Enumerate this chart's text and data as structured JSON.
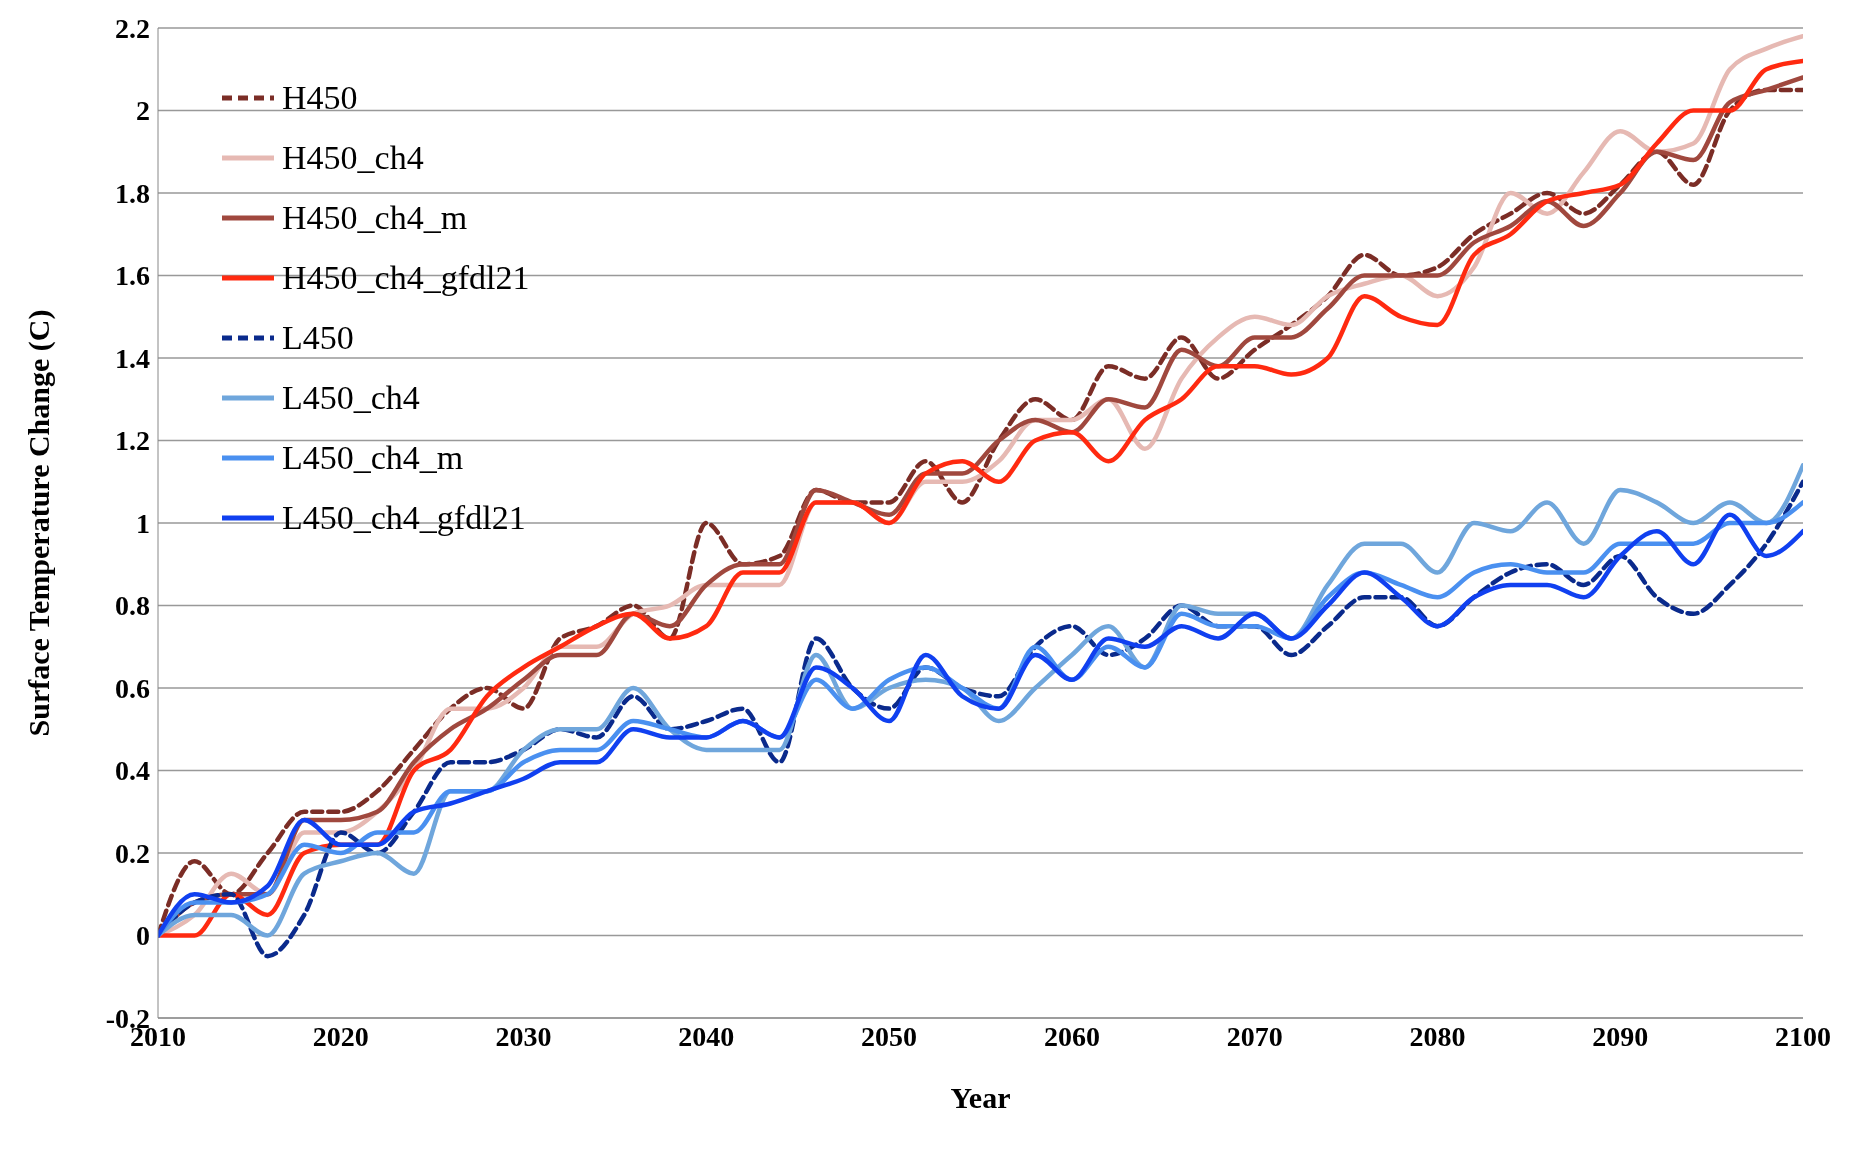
{
  "chart_data": {
    "type": "line",
    "xlabel": "Year",
    "ylabel": "Surface Temperature Change (C)",
    "x": [
      2010,
      2012,
      2014,
      2016,
      2018,
      2020,
      2022,
      2024,
      2026,
      2028,
      2030,
      2032,
      2034,
      2036,
      2038,
      2040,
      2042,
      2044,
      2046,
      2048,
      2050,
      2052,
      2054,
      2056,
      2058,
      2060,
      2062,
      2064,
      2066,
      2068,
      2070,
      2072,
      2074,
      2076,
      2078,
      2080,
      2082,
      2084,
      2086,
      2088,
      2090,
      2092,
      2094,
      2096,
      2098,
      2100
    ],
    "xlim": [
      2010,
      2100
    ],
    "xticks": [
      2010,
      2020,
      2030,
      2040,
      2050,
      2060,
      2070,
      2080,
      2090,
      2100
    ],
    "ylim": [
      -0.2,
      2.2
    ],
    "yticks": [
      -0.2,
      0,
      0.2,
      0.4,
      0.6,
      0.8,
      1,
      1.2,
      1.4,
      1.6,
      1.8,
      2,
      2.2
    ],
    "grid": "y",
    "legend": "top left",
    "marker": "none",
    "series": [
      {
        "name": "H450",
        "color": "#7b2d26",
        "line_style": "dashed",
        "values": [
          0,
          0.18,
          0.1,
          0.2,
          0.3,
          0.3,
          0.35,
          0.45,
          0.55,
          0.6,
          0.55,
          0.72,
          0.75,
          0.8,
          0.72,
          1.0,
          0.9,
          0.92,
          1.08,
          1.05,
          1.05,
          1.15,
          1.05,
          1.2,
          1.3,
          1.25,
          1.38,
          1.35,
          1.45,
          1.35,
          1.42,
          1.48,
          1.55,
          1.65,
          1.6,
          1.62,
          1.7,
          1.75,
          1.8,
          1.75,
          1.82,
          1.9,
          1.82,
          2.0,
          2.05,
          2.05
        ]
      },
      {
        "name": "H450_ch4",
        "color": "#e6b9b3",
        "line_style": "solid",
        "values": [
          0,
          0.05,
          0.15,
          0.1,
          0.25,
          0.25,
          0.3,
          0.4,
          0.55,
          0.55,
          0.6,
          0.7,
          0.7,
          0.78,
          0.8,
          0.85,
          0.85,
          0.85,
          1.05,
          1.05,
          1.0,
          1.1,
          1.1,
          1.15,
          1.25,
          1.25,
          1.3,
          1.18,
          1.35,
          1.45,
          1.5,
          1.48,
          1.55,
          1.58,
          1.6,
          1.55,
          1.62,
          1.8,
          1.75,
          1.85,
          1.95,
          1.9,
          1.92,
          2.1,
          2.15,
          2.18
        ]
      },
      {
        "name": "H450_ch4_m",
        "color": "#a0483e",
        "line_style": "solid",
        "values": [
          0,
          0.08,
          0.1,
          0.1,
          0.28,
          0.28,
          0.3,
          0.42,
          0.5,
          0.55,
          0.62,
          0.68,
          0.68,
          0.78,
          0.75,
          0.85,
          0.9,
          0.9,
          1.08,
          1.05,
          1.02,
          1.12,
          1.12,
          1.2,
          1.25,
          1.22,
          1.3,
          1.28,
          1.42,
          1.38,
          1.45,
          1.45,
          1.52,
          1.6,
          1.6,
          1.6,
          1.68,
          1.72,
          1.78,
          1.72,
          1.8,
          1.9,
          1.88,
          2.02,
          2.05,
          2.08
        ]
      },
      {
        "name": "H450_ch4_gfdl21",
        "color": "#ff2a10",
        "line_style": "solid",
        "values": [
          0,
          0.0,
          0.1,
          0.05,
          0.2,
          0.22,
          0.22,
          0.4,
          0.45,
          0.58,
          0.65,
          0.7,
          0.75,
          0.78,
          0.72,
          0.75,
          0.88,
          0.88,
          1.05,
          1.05,
          1.0,
          1.12,
          1.15,
          1.1,
          1.2,
          1.22,
          1.15,
          1.25,
          1.3,
          1.38,
          1.38,
          1.36,
          1.4,
          1.55,
          1.5,
          1.48,
          1.65,
          1.7,
          1.78,
          1.8,
          1.82,
          1.92,
          2.0,
          2.0,
          2.1,
          2.12
        ]
      },
      {
        "name": "L450",
        "color": "#0a2a8c",
        "line_style": "dashed",
        "values": [
          0,
          0.08,
          0.1,
          -0.05,
          0.05,
          0.25,
          0.2,
          0.3,
          0.42,
          0.42,
          0.45,
          0.5,
          0.48,
          0.58,
          0.5,
          0.52,
          0.55,
          0.42,
          0.72,
          0.6,
          0.55,
          0.65,
          0.6,
          0.58,
          0.7,
          0.75,
          0.68,
          0.72,
          0.8,
          0.75,
          0.75,
          0.68,
          0.75,
          0.82,
          0.82,
          0.75,
          0.82,
          0.88,
          0.9,
          0.85,
          0.92,
          0.82,
          0.78,
          0.85,
          0.95,
          1.1
        ]
      },
      {
        "name": "L450_ch4",
        "color": "#6fa6dc",
        "line_style": "solid",
        "values": [
          0,
          0.05,
          0.05,
          0.0,
          0.15,
          0.18,
          0.2,
          0.15,
          0.35,
          0.35,
          0.45,
          0.5,
          0.5,
          0.6,
          0.5,
          0.45,
          0.45,
          0.45,
          0.68,
          0.55,
          0.6,
          0.62,
          0.6,
          0.52,
          0.6,
          0.68,
          0.75,
          0.65,
          0.8,
          0.78,
          0.78,
          0.72,
          0.85,
          0.95,
          0.95,
          0.88,
          1.0,
          0.98,
          1.05,
          0.95,
          1.08,
          1.05,
          1.0,
          1.05,
          1.0,
          1.14
        ]
      },
      {
        "name": "L450_ch4_m",
        "color": "#4a90f0",
        "line_style": "solid",
        "values": [
          0,
          0.08,
          0.08,
          0.1,
          0.22,
          0.2,
          0.25,
          0.25,
          0.35,
          0.35,
          0.42,
          0.45,
          0.45,
          0.52,
          0.5,
          0.48,
          0.52,
          0.48,
          0.62,
          0.55,
          0.62,
          0.65,
          0.6,
          0.55,
          0.7,
          0.62,
          0.7,
          0.65,
          0.78,
          0.75,
          0.75,
          0.72,
          0.82,
          0.88,
          0.85,
          0.82,
          0.88,
          0.9,
          0.88,
          0.88,
          0.95,
          0.95,
          0.95,
          1.0,
          1.0,
          1.05
        ]
      },
      {
        "name": "L450_ch4_gfdl21",
        "color": "#1040f0",
        "line_style": "solid",
        "values": [
          0,
          0.1,
          0.08,
          0.12,
          0.28,
          0.22,
          0.22,
          0.3,
          0.32,
          0.35,
          0.38,
          0.42,
          0.42,
          0.5,
          0.48,
          0.48,
          0.52,
          0.48,
          0.65,
          0.6,
          0.52,
          0.68,
          0.58,
          0.55,
          0.68,
          0.62,
          0.72,
          0.7,
          0.75,
          0.72,
          0.78,
          0.72,
          0.8,
          0.88,
          0.82,
          0.75,
          0.82,
          0.85,
          0.85,
          0.82,
          0.92,
          0.98,
          0.9,
          1.02,
          0.92,
          0.98
        ]
      }
    ]
  }
}
